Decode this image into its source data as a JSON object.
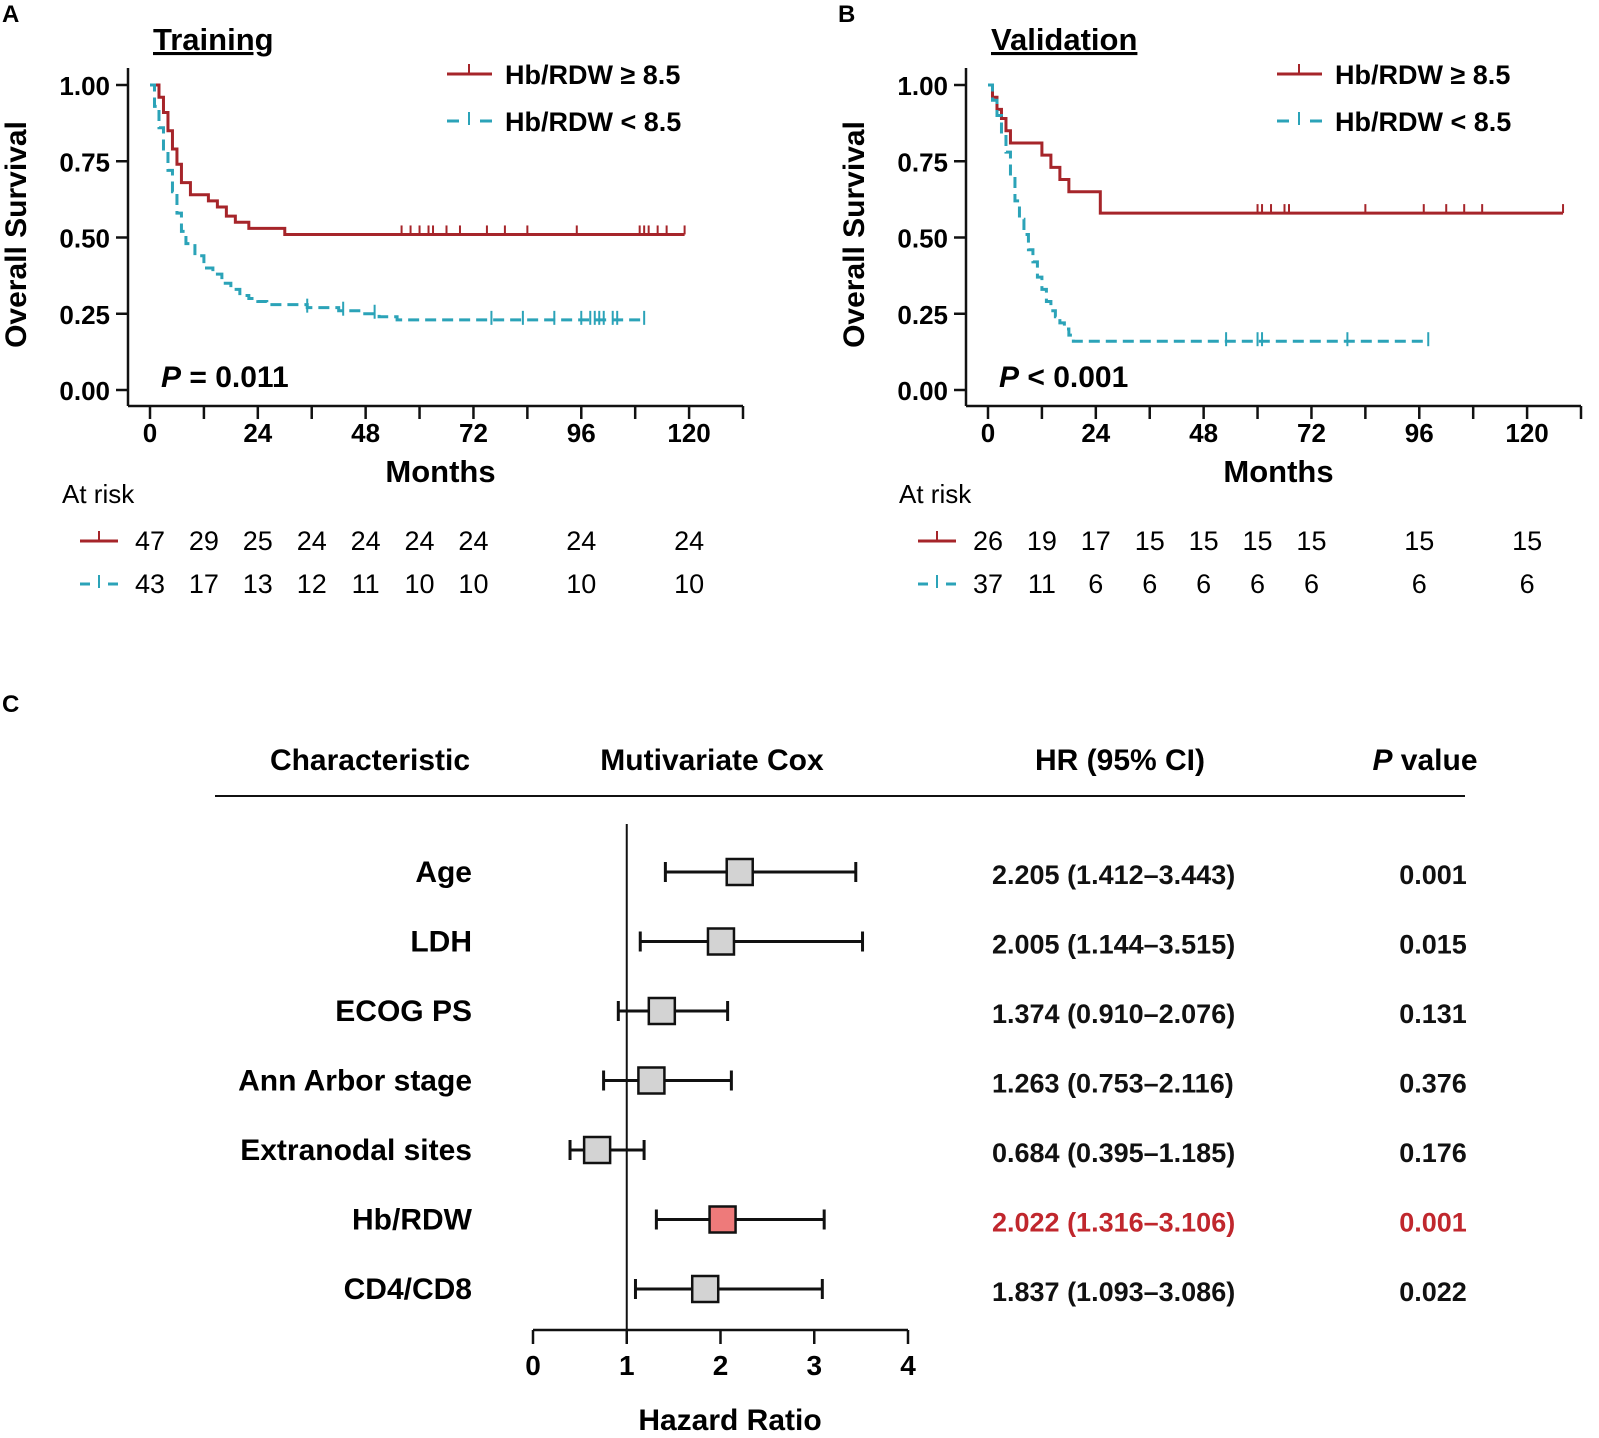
{
  "colors": {
    "high": "#A6252A",
    "low": "#2BA3B8",
    "axis": "#111111",
    "marker": "#D3D3D3",
    "highlight_marker": "#EE7A7A",
    "highlight_text": "#C0272D"
  },
  "chart_data": [
    {
      "type": "line",
      "panel_label": "A",
      "title": "Training",
      "xlabel": "Months",
      "ylabel": "Overall Survival",
      "xlim": [
        0,
        132
      ],
      "ylim": [
        0,
        1
      ],
      "x_ticks": [
        0,
        24,
        48,
        72,
        96,
        120
      ],
      "x_tick_labels": [
        "0",
        "24",
        "48",
        "72",
        "96",
        "120"
      ],
      "y_ticks": [
        0,
        0.25,
        0.5,
        0.75,
        1
      ],
      "y_tick_labels": [
        "0.00",
        "0.25",
        "0.50",
        "0.75",
        "1.00"
      ],
      "p_label": "P",
      "p_text": " = 0.011",
      "legend": [
        "Hb/RDW ≥ 8.5",
        "Hb/RDW < 8.5"
      ],
      "series": [
        {
          "name": "Hb/RDW ≥ 8.5",
          "style": "solid",
          "x": [
            0,
            2,
            3,
            4,
            5,
            6,
            7,
            9,
            13,
            15,
            17,
            19,
            22,
            30,
            119
          ],
          "y": [
            1.0,
            0.96,
            0.91,
            0.85,
            0.79,
            0.74,
            0.68,
            0.64,
            0.62,
            0.6,
            0.57,
            0.55,
            0.53,
            0.51,
            0.51
          ],
          "censor_x": [
            56,
            58,
            60,
            62,
            63,
            66,
            69,
            75,
            79,
            84,
            95,
            109,
            110,
            111,
            113,
            115,
            119
          ]
        },
        {
          "name": "Hb/RDW < 8.5",
          "style": "dashed",
          "x": [
            0,
            1,
            2,
            3,
            4,
            5,
            6,
            7,
            8,
            10,
            12,
            14,
            16,
            18,
            20,
            22,
            24,
            26,
            35,
            42,
            47,
            51,
            55,
            110
          ],
          "y": [
            1.0,
            0.93,
            0.86,
            0.79,
            0.72,
            0.65,
            0.58,
            0.52,
            0.48,
            0.44,
            0.4,
            0.38,
            0.35,
            0.33,
            0.31,
            0.3,
            0.29,
            0.28,
            0.27,
            0.26,
            0.25,
            0.24,
            0.23,
            0.23
          ],
          "censor_x": [
            35,
            43,
            50,
            76,
            83,
            90,
            96,
            98,
            99,
            100,
            101,
            103,
            104,
            110
          ]
        }
      ],
      "at_risk_label": "At risk",
      "at_risk_x": [
        0,
        12,
        24,
        36,
        48,
        60,
        72,
        96,
        120
      ],
      "at_risk_high": [
        "47",
        "29",
        "25",
        "24",
        "24",
        "24",
        "24",
        "24",
        "24"
      ],
      "at_risk_low": [
        "43",
        "17",
        "13",
        "12",
        "11",
        "10",
        "10",
        "10",
        "10"
      ]
    },
    {
      "type": "line",
      "panel_label": "B",
      "title": "Validation",
      "xlabel": "Months",
      "ylabel": "Overall Survival",
      "xlim": [
        0,
        132
      ],
      "ylim": [
        0,
        1
      ],
      "x_ticks": [
        0,
        24,
        48,
        72,
        96,
        120
      ],
      "x_tick_labels": [
        "0",
        "24",
        "48",
        "72",
        "96",
        "120"
      ],
      "y_ticks": [
        0,
        0.25,
        0.5,
        0.75,
        1
      ],
      "y_tick_labels": [
        "0.00",
        "0.25",
        "0.50",
        "0.75",
        "1.00"
      ],
      "p_label": "P",
      "p_text": " < 0.001",
      "legend": [
        "Hb/RDW ≥ 8.5",
        "Hb/RDW < 8.5"
      ],
      "series": [
        {
          "name": "Hb/RDW ≥ 8.5",
          "style": "solid",
          "x": [
            0,
            1,
            2,
            3,
            4,
            5,
            6,
            12,
            14,
            16,
            17,
            18,
            25,
            128
          ],
          "y": [
            1.0,
            0.96,
            0.92,
            0.89,
            0.85,
            0.81,
            0.81,
            0.77,
            0.73,
            0.69,
            0.69,
            0.65,
            0.58,
            0.58
          ],
          "censor_x": [
            60,
            61,
            63,
            66,
            67,
            84,
            97,
            102,
            106,
            110,
            128
          ]
        },
        {
          "name": "Hb/RDW < 8.5",
          "style": "dashed",
          "x": [
            0,
            1,
            2,
            3,
            4,
            5,
            6,
            7,
            8,
            9,
            10,
            11,
            12,
            13,
            14,
            15,
            16,
            17,
            18,
            19,
            98
          ],
          "y": [
            1.0,
            0.95,
            0.9,
            0.84,
            0.78,
            0.7,
            0.62,
            0.56,
            0.51,
            0.46,
            0.42,
            0.37,
            0.33,
            0.29,
            0.26,
            0.24,
            0.22,
            0.2,
            0.18,
            0.16,
            0.16
          ],
          "censor_x": [
            53,
            60,
            61,
            80,
            98
          ]
        }
      ],
      "at_risk_label": "At risk",
      "at_risk_x": [
        0,
        12,
        24,
        36,
        48,
        60,
        72,
        96,
        120
      ],
      "at_risk_high": [
        "26",
        "19",
        "17",
        "15",
        "15",
        "15",
        "15",
        "15",
        "15"
      ],
      "at_risk_low": [
        "37",
        "11",
        "6",
        "6",
        "6",
        "6",
        "6",
        "6",
        "6"
      ]
    },
    {
      "type": "forest",
      "panel_label": "C",
      "headers": {
        "characteristic": "Characteristic",
        "model": "Mutivariate Cox",
        "hr": "HR (95% CI)",
        "p_italic": "P",
        "p_rest": " value"
      },
      "xlabel": "Hazard Ratio",
      "xlim": [
        0,
        4
      ],
      "x_ticks": [
        0,
        1,
        2,
        3,
        4
      ],
      "x_tick_labels": [
        "0",
        "1",
        "2",
        "3",
        "4"
      ],
      "reference_line": 1,
      "rows": [
        {
          "label": "Age",
          "hr": 2.205,
          "lo": 1.412,
          "hi": 3.443,
          "hr_text": "2.205 (1.412–3.443)",
          "p": "0.001",
          "highlight": false
        },
        {
          "label": "LDH",
          "hr": 2.005,
          "lo": 1.144,
          "hi": 3.515,
          "hr_text": "2.005 (1.144–3.515)",
          "p": "0.015",
          "highlight": false
        },
        {
          "label": "ECOG PS",
          "hr": 1.374,
          "lo": 0.91,
          "hi": 2.076,
          "hr_text": "1.374 (0.910–2.076)",
          "p": "0.131",
          "highlight": false
        },
        {
          "label": "Ann Arbor stage",
          "hr": 1.263,
          "lo": 0.753,
          "hi": 2.116,
          "hr_text": "1.263 (0.753–2.116)",
          "p": "0.376",
          "highlight": false
        },
        {
          "label": "Extranodal sites",
          "hr": 0.684,
          "lo": 0.395,
          "hi": 1.185,
          "hr_text": "0.684 (0.395–1.185)",
          "p": "0.176",
          "highlight": false
        },
        {
          "label": "Hb/RDW",
          "hr": 2.022,
          "lo": 1.316,
          "hi": 3.106,
          "hr_text": "2.022 (1.316–3.106)",
          "p": "0.001",
          "highlight": true
        },
        {
          "label": "CD4/CD8",
          "hr": 1.837,
          "lo": 1.093,
          "hi": 3.086,
          "hr_text": "1.837 (1.093–3.086)",
          "p": "0.022",
          "highlight": false
        }
      ]
    }
  ]
}
